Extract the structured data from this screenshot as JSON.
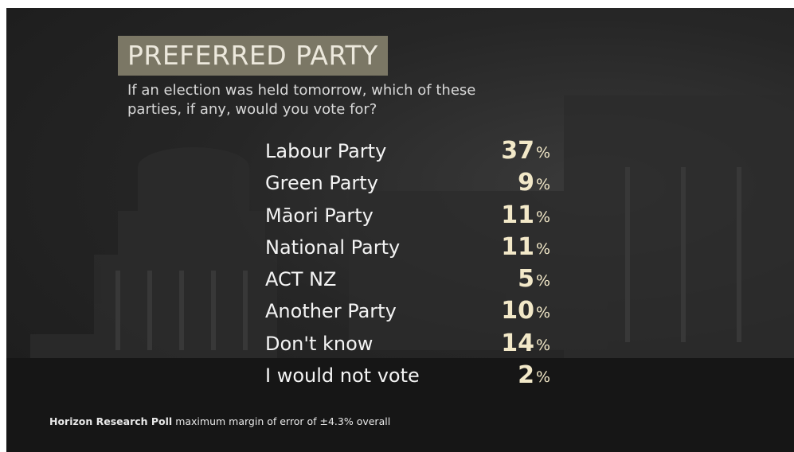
{
  "header": {
    "title": "PREFERRED PARTY",
    "subtitle": "If an election was held tomorrow, which of these parties, if any, would you vote for?"
  },
  "table": {
    "unit": "%",
    "rows": [
      [
        "Labour Party",
        37
      ],
      [
        "Green Party",
        9
      ],
      [
        "Māori Party",
        11
      ],
      [
        "National Party",
        11
      ],
      [
        "ACT NZ",
        5
      ],
      [
        "Another Party",
        10
      ],
      [
        "Don't know",
        14
      ],
      [
        "I would not vote",
        2
      ]
    ]
  },
  "footer": {
    "source": "Horizon Research Poll",
    "note": "maximum margin of error of ±4.3% overall"
  }
}
